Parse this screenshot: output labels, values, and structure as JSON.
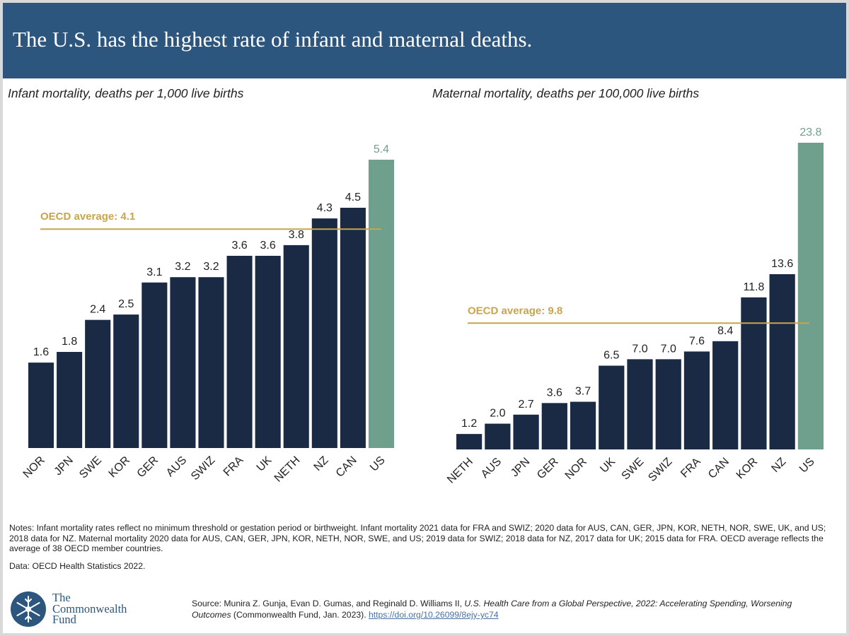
{
  "header": {
    "title": "The U.S. has the highest rate of infant and maternal deaths."
  },
  "colors": {
    "header_bg": "#2c567e",
    "bar": "#1a2a44",
    "us_bar": "#6fa08e",
    "oecd_line": "#c9a44a"
  },
  "chart_data": [
    {
      "type": "bar",
      "title": "Infant mortality, deaths per 1,000 live births",
      "categories": [
        "NOR",
        "JPN",
        "SWE",
        "KOR",
        "GER",
        "AUS",
        "SWIZ",
        "FRA",
        "UK",
        "NETH",
        "NZ",
        "CAN",
        "US"
      ],
      "values": [
        1.6,
        1.8,
        2.4,
        2.5,
        3.1,
        3.2,
        3.2,
        3.6,
        3.6,
        3.8,
        4.3,
        4.5,
        5.4
      ],
      "value_labels": [
        "1.6",
        "1.8",
        "2.4",
        "2.5",
        "3.1",
        "3.2",
        "3.2",
        "3.6",
        "3.6",
        "3.8",
        "4.3",
        "4.5",
        "5.4"
      ],
      "highlight": "US",
      "reference_line": {
        "label": "OECD average: 4.1",
        "value": 4.1
      },
      "xlabel": "",
      "ylabel": "",
      "ylim": [
        0,
        5.4
      ]
    },
    {
      "type": "bar",
      "title": "Maternal mortality, deaths per 100,000 live births",
      "categories": [
        "NETH",
        "AUS",
        "JPN",
        "GER",
        "NOR",
        "UK",
        "SWE",
        "SWIZ",
        "FRA",
        "CAN",
        "KOR",
        "NZ",
        "US"
      ],
      "values": [
        1.2,
        2.0,
        2.7,
        3.6,
        3.7,
        6.5,
        7.0,
        7.0,
        7.6,
        8.4,
        11.8,
        13.6,
        23.8
      ],
      "value_labels": [
        "1.2",
        "2.0",
        "2.7",
        "3.6",
        "3.7",
        "6.5",
        "7.0",
        "7.0",
        "7.6",
        "8.4",
        "11.8",
        "13.6",
        "23.8"
      ],
      "highlight": "US",
      "reference_line": {
        "label": "OECD average: 9.8",
        "value": 9.8
      },
      "xlabel": "",
      "ylabel": "",
      "ylim": [
        0,
        23.8
      ]
    }
  ],
  "notes": "Notes: Infant mortality rates reflect no minimum threshold or gestation period or birthweight. Infant mortality 2021 data for FRA and SWIZ; 2020 data for AUS, CAN, GER, JPN, KOR, NETH, NOR, SWE, UK, and US; 2018 data for NZ. Maternal mortality 2020 data for AUS, CAN, GER, JPN, KOR, NETH, NOR, SWE, and US; 2019 data for SWIZ; 2018 data for NZ, 2017 data for UK; 2015 data for FRA. OECD average reflects the average of 38 OECD member countries.",
  "data_source": "Data: OECD Health Statistics 2022.",
  "logo": {
    "line1": "The",
    "line2": "Commonwealth",
    "line3": "Fund"
  },
  "source": {
    "prefix": "Source: Munira Z. Gunja, Evan D. Gumas, and Reginald D. Williams II, ",
    "title": "U.S. Health Care from a Global Perspective, 2022: Accelerating Spending, Worsening Outcomes",
    "suffix": " (Commonwealth Fund, Jan. 2023). ",
    "link": "https://doi.org/10.26099/8ejy-yc74"
  }
}
